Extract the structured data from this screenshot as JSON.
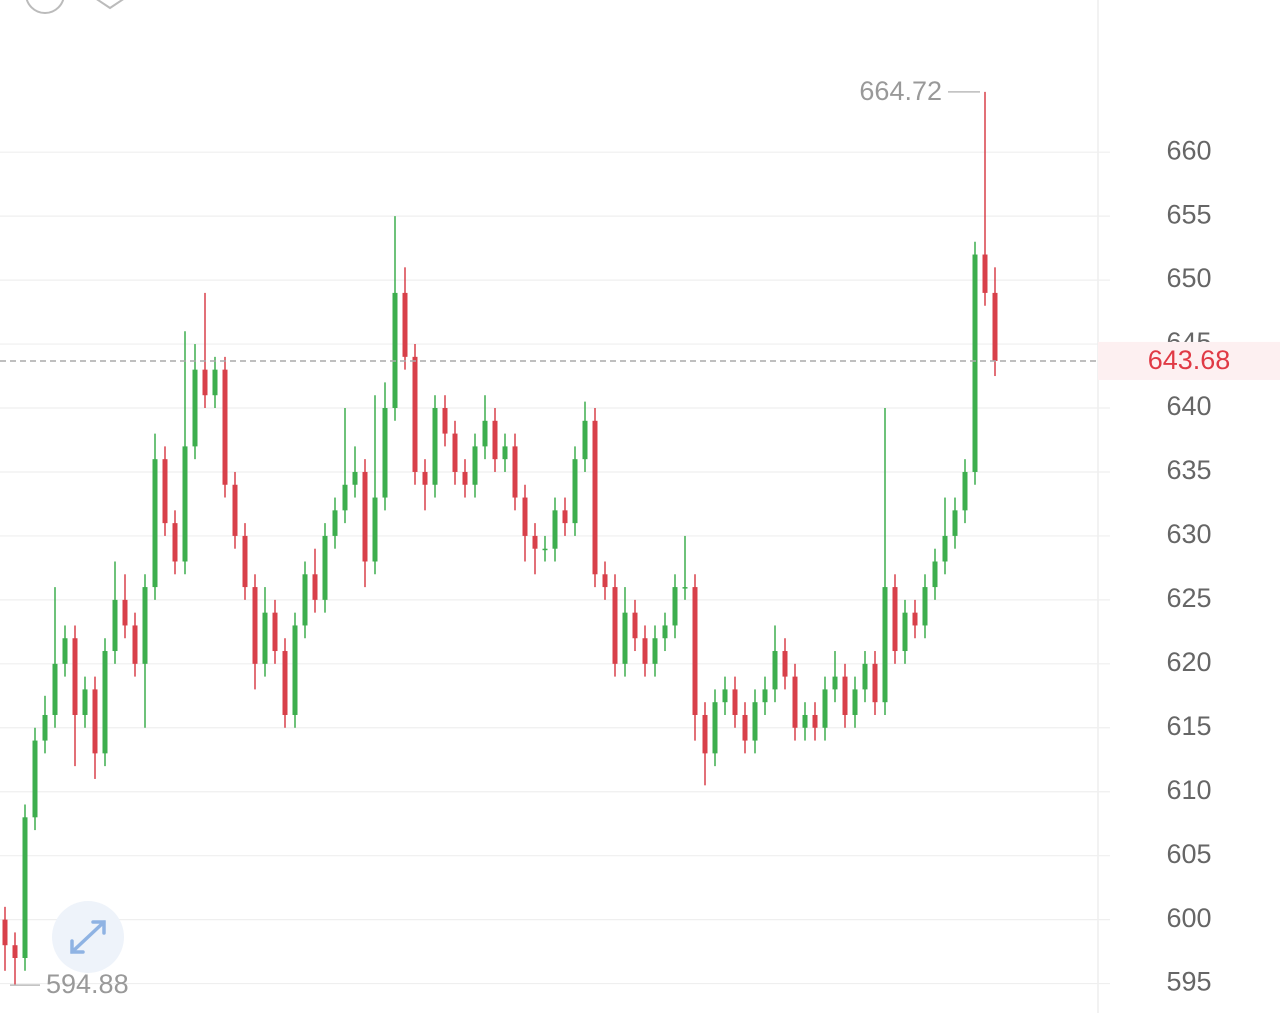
{
  "chart_data": {
    "type": "candlestick",
    "up_color": "#3dae4e",
    "down_color": "#d8404a",
    "ylim": [
      592.7,
      671.9
    ],
    "yticks": [
      595,
      600,
      605,
      610,
      615,
      620,
      625,
      630,
      635,
      640,
      645,
      650,
      655,
      660
    ],
    "grid": true,
    "open": [
      600,
      598,
      597,
      608,
      614,
      616,
      620,
      622,
      616,
      618,
      613,
      621,
      625,
      623,
      620,
      626,
      636,
      631,
      628,
      637,
      643,
      641,
      643,
      634,
      630,
      626,
      620,
      624,
      621,
      616,
      623,
      627,
      625,
      630,
      632,
      634,
      635,
      628,
      633,
      640,
      649,
      644,
      635,
      634,
      640,
      638,
      635,
      634,
      637,
      639,
      636,
      637,
      633,
      630,
      629,
      629,
      632,
      631,
      636,
      639,
      627,
      626,
      620,
      624,
      622,
      620,
      622,
      623,
      626,
      626,
      616,
      613,
      617,
      618,
      616,
      614,
      617,
      618,
      621,
      619,
      615,
      616,
      615,
      618,
      619,
      616,
      618,
      620,
      617,
      626,
      621,
      624,
      623,
      626,
      628,
      630,
      632,
      635,
      652,
      649
    ],
    "high": [
      601,
      599,
      609,
      615,
      617.5,
      626,
      623,
      623,
      619,
      619,
      622,
      628,
      627,
      624,
      627,
      638,
      637,
      632,
      646,
      645,
      649,
      644,
      644,
      635,
      631,
      627,
      626,
      625,
      622,
      624,
      628,
      629,
      631,
      633,
      640,
      637,
      636,
      641,
      642,
      655,
      651,
      645,
      636,
      641,
      641,
      639,
      636,
      638,
      641,
      640,
      638,
      638,
      634,
      631,
      630,
      633,
      633,
      637,
      640.5,
      640,
      628,
      627,
      626,
      625,
      623,
      623,
      624,
      627,
      630,
      627,
      617,
      618,
      619,
      619,
      617,
      618,
      619,
      623,
      622,
      620,
      617,
      617,
      619,
      621,
      620,
      619,
      621,
      621,
      640,
      627,
      625,
      625,
      627,
      629,
      633,
      633,
      636,
      653,
      664.72,
      651
    ],
    "low": [
      596,
      594.88,
      596,
      607,
      613,
      615,
      619,
      612,
      615,
      611,
      612,
      620,
      622,
      619,
      615,
      625,
      630,
      627,
      627,
      636,
      640,
      640,
      633,
      629,
      625,
      618,
      619,
      620,
      615,
      615,
      622,
      624,
      624,
      629,
      631,
      633,
      626,
      627,
      632,
      639,
      643,
      634,
      632,
      633,
      637,
      634,
      633,
      633,
      636,
      635,
      635,
      632,
      628,
      627,
      628,
      628,
      630,
      630,
      635,
      626,
      625,
      619,
      619,
      621,
      619,
      619,
      621,
      622,
      625,
      614,
      610.5,
      612,
      616,
      615,
      613,
      613,
      616,
      617,
      618,
      614,
      614,
      614,
      614,
      617,
      615,
      615,
      617,
      616,
      616,
      620,
      620,
      622,
      622,
      625,
      627,
      629,
      631,
      634,
      648,
      642.5
    ],
    "close": [
      598,
      597,
      608,
      614,
      616,
      620,
      622,
      616,
      618,
      613,
      621,
      625,
      623,
      620,
      626,
      636,
      631,
      628,
      637,
      643,
      641,
      643,
      634,
      630,
      626,
      620,
      624,
      621,
      616,
      623,
      627,
      625,
      630,
      632,
      634,
      635,
      628,
      633,
      640,
      649,
      644,
      635,
      634,
      640,
      638,
      635,
      634,
      637,
      639,
      636,
      637,
      633,
      630,
      629,
      629,
      632,
      631,
      636,
      639,
      627,
      626,
      620,
      624,
      622,
      620,
      622,
      623,
      626,
      626,
      616,
      613,
      617,
      618,
      616,
      614,
      617,
      618,
      621,
      619,
      615,
      616,
      615,
      618,
      619,
      616,
      618,
      620,
      617,
      626,
      621,
      624,
      623,
      626,
      628,
      630,
      632,
      635,
      652,
      649,
      643.68
    ],
    "high_marker": 664.72,
    "low_marker": 594.88,
    "last_price": 643.68
  }
}
